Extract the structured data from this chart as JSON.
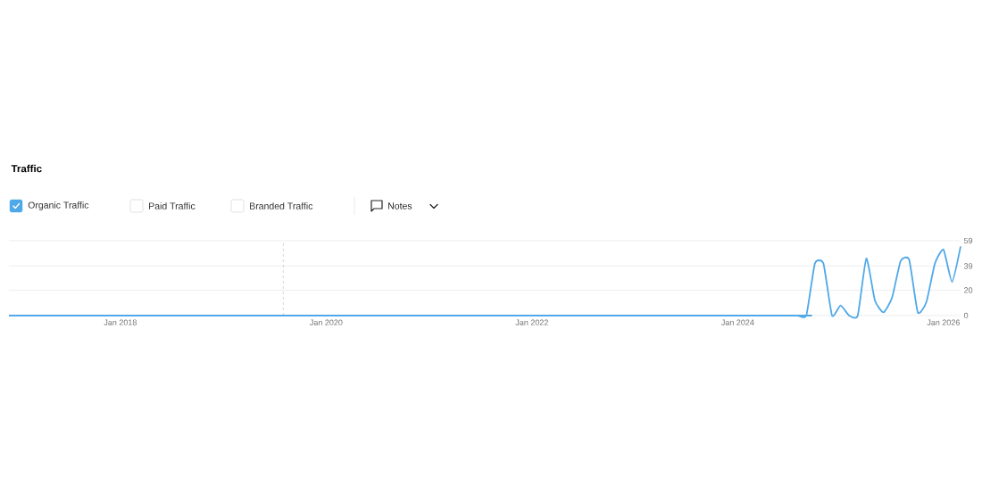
{
  "chart_data": {
    "type": "line",
    "title": "Traffic",
    "x": [
      "2016-12",
      "2024-06",
      "2024-07",
      "2024-08",
      "2024-09",
      "2024-10",
      "2024-11",
      "2024-12",
      "2025-01",
      "2025-02",
      "2025-03",
      "2025-04",
      "2025-05",
      "2025-06",
      "2025-07",
      "2025-08",
      "2025-09",
      "2025-10",
      "2025-11",
      "2025-12",
      "2026-01",
      "2026-02",
      "2026-03"
    ],
    "series": [
      {
        "name": "Organic Traffic",
        "color": "#4fa8e8",
        "values": [
          0,
          0,
          0,
          0,
          0,
          41,
          41,
          0,
          8,
          0,
          0,
          45,
          12,
          2.5,
          14,
          43,
          44,
          2.5,
          10.5,
          41,
          52,
          26.5,
          54.5
        ]
      }
    ],
    "xlim": [
      "2016-12",
      "2026-03"
    ],
    "xticks": [
      {
        "value": "2018-01",
        "label": "Jan 2018"
      },
      {
        "value": "2020-01",
        "label": "Jan 2020"
      },
      {
        "value": "2022-01",
        "label": "Jan 2022"
      },
      {
        "value": "2024-01",
        "label": "Jan 2024"
      },
      {
        "value": "2026-01",
        "label": "Jan 2026"
      }
    ],
    "ylim": [
      0,
      59
    ],
    "yticks": [
      0,
      20,
      39,
      59
    ],
    "grid": "y",
    "legend": "top left",
    "marker": "none",
    "line_style": "solid",
    "ref_lines": [
      {
        "axis": "x",
        "value": "2019-08",
        "color": "#bbbbbb",
        "line_style": "dashed"
      }
    ],
    "annotations": [
      "Paid Traffic",
      "Branded Traffic",
      "Notes"
    ]
  }
}
